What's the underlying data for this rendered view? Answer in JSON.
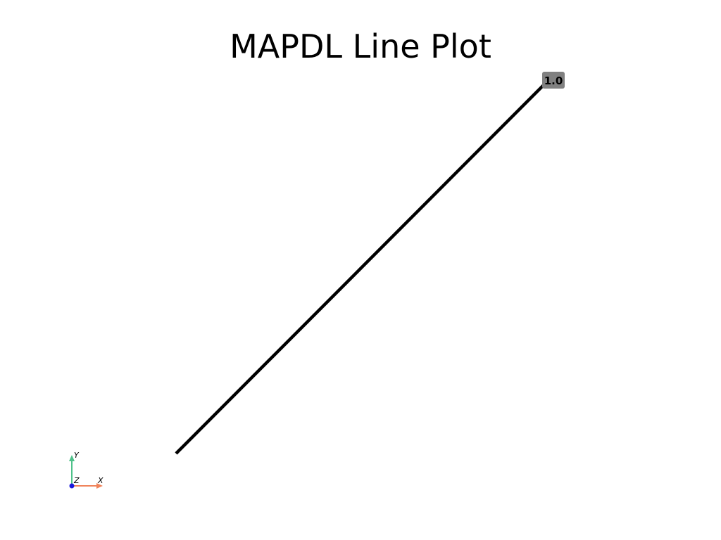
{
  "chart_data": {
    "type": "line",
    "title": "MAPDL Line Plot",
    "xlabel": "",
    "ylabel": "",
    "grid": false,
    "series": [
      {
        "x": [
          0.0,
          1.0
        ],
        "y": [
          0.0,
          1.0
        ],
        "color": "#000000"
      }
    ],
    "point_labels": [
      {
        "x": 1.0,
        "y": 1.0,
        "text": "1.0"
      }
    ],
    "axes_widget": {
      "x_label": "X",
      "y_label": "Y",
      "z_label": "Z",
      "x_color": "#f0835a",
      "y_color": "#4fc18a",
      "z_color": "#1a1adc"
    }
  }
}
